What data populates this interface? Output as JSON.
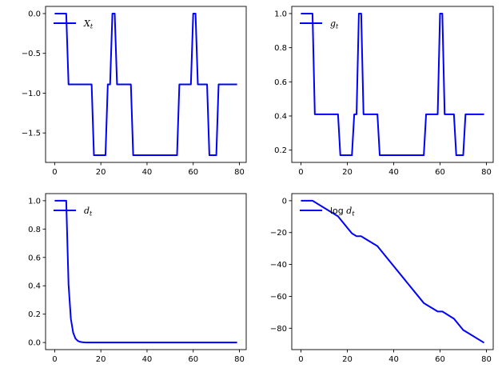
{
  "chart_data": [
    {
      "type": "line",
      "legend": {
        "main": "X",
        "sub": "t",
        "prefix": "",
        "placement": "upper-left"
      },
      "xlim": [
        -3.95,
        82.95
      ],
      "ylim": [
        -1.87,
        0.09
      ],
      "xticks": [
        0,
        20,
        40,
        60,
        80
      ],
      "xtick_labels": [
        "0",
        "20",
        "40",
        "60",
        "80"
      ],
      "yticks": [
        0.0,
        -0.5,
        -1.0,
        -1.5
      ],
      "ytick_labels": [
        "0.0",
        "−0.5",
        "−1.0",
        "−1.5"
      ],
      "color": "#0000ff",
      "x": [
        0,
        1,
        2,
        3,
        4,
        5,
        6,
        7,
        8,
        9,
        10,
        11,
        12,
        13,
        14,
        15,
        16,
        17,
        18,
        19,
        20,
        21,
        22,
        23,
        24,
        25,
        26,
        27,
        28,
        29,
        30,
        31,
        32,
        33,
        34,
        35,
        36,
        37,
        38,
        39,
        40,
        41,
        42,
        43,
        44,
        45,
        46,
        47,
        48,
        49,
        50,
        51,
        52,
        53,
        54,
        55,
        56,
        57,
        58,
        59,
        60,
        61,
        62,
        63,
        64,
        65,
        66,
        67,
        68,
        69,
        70,
        71,
        72,
        73,
        74,
        75,
        76,
        77,
        78,
        79
      ],
      "y": [
        0,
        0,
        0,
        0,
        0,
        0,
        -0.89,
        -0.89,
        -0.89,
        -0.89,
        -0.89,
        -0.89,
        -0.89,
        -0.89,
        -0.89,
        -0.89,
        -0.89,
        -1.78,
        -1.78,
        -1.78,
        -1.78,
        -1.78,
        -1.78,
        -0.89,
        -0.89,
        0,
        0,
        -0.89,
        -0.89,
        -0.89,
        -0.89,
        -0.89,
        -0.89,
        -0.89,
        -1.78,
        -1.78,
        -1.78,
        -1.78,
        -1.78,
        -1.78,
        -1.78,
        -1.78,
        -1.78,
        -1.78,
        -1.78,
        -1.78,
        -1.78,
        -1.78,
        -1.78,
        -1.78,
        -1.78,
        -1.78,
        -1.78,
        -1.78,
        -0.89,
        -0.89,
        -0.89,
        -0.89,
        -0.89,
        -0.89,
        0,
        0,
        -0.89,
        -0.89,
        -0.89,
        -0.89,
        -0.89,
        -1.78,
        -1.78,
        -1.78,
        -1.78,
        -0.89,
        -0.89,
        -0.89,
        -0.89,
        -0.89,
        -0.89,
        -0.89,
        -0.89,
        -0.89
      ]
    },
    {
      "type": "line",
      "legend": {
        "main": "g",
        "sub": "t",
        "prefix": "",
        "placement": "upper-left"
      },
      "xlim": [
        -3.95,
        82.95
      ],
      "ylim": [
        0.128,
        1.042
      ],
      "xticks": [
        0,
        20,
        40,
        60,
        80
      ],
      "xtick_labels": [
        "0",
        "20",
        "40",
        "60",
        "80"
      ],
      "yticks": [
        0.2,
        0.4,
        0.6,
        0.8,
        1.0
      ],
      "ytick_labels": [
        "0.2",
        "0.4",
        "0.6",
        "0.8",
        "1.0"
      ],
      "color": "#0000ff",
      "x": [
        0,
        1,
        2,
        3,
        4,
        5,
        6,
        7,
        8,
        9,
        10,
        11,
        12,
        13,
        14,
        15,
        16,
        17,
        18,
        19,
        20,
        21,
        22,
        23,
        24,
        25,
        26,
        27,
        28,
        29,
        30,
        31,
        32,
        33,
        34,
        35,
        36,
        37,
        38,
        39,
        40,
        41,
        42,
        43,
        44,
        45,
        46,
        47,
        48,
        49,
        50,
        51,
        52,
        53,
        54,
        55,
        56,
        57,
        58,
        59,
        60,
        61,
        62,
        63,
        64,
        65,
        66,
        67,
        68,
        69,
        70,
        71,
        72,
        73,
        74,
        75,
        76,
        77,
        78,
        79
      ],
      "y": [
        1,
        1,
        1,
        1,
        1,
        1,
        0.41,
        0.41,
        0.41,
        0.41,
        0.41,
        0.41,
        0.41,
        0.41,
        0.41,
        0.41,
        0.41,
        0.17,
        0.17,
        0.17,
        0.17,
        0.17,
        0.17,
        0.41,
        0.41,
        1,
        1,
        0.41,
        0.41,
        0.41,
        0.41,
        0.41,
        0.41,
        0.41,
        0.17,
        0.17,
        0.17,
        0.17,
        0.17,
        0.17,
        0.17,
        0.17,
        0.17,
        0.17,
        0.17,
        0.17,
        0.17,
        0.17,
        0.17,
        0.17,
        0.17,
        0.17,
        0.17,
        0.17,
        0.41,
        0.41,
        0.41,
        0.41,
        0.41,
        0.41,
        1,
        1,
        0.41,
        0.41,
        0.41,
        0.41,
        0.41,
        0.17,
        0.17,
        0.17,
        0.17,
        0.41,
        0.41,
        0.41,
        0.41,
        0.41,
        0.41,
        0.41,
        0.41,
        0.41
      ]
    },
    {
      "type": "line",
      "legend": {
        "main": "d",
        "sub": "t",
        "prefix": "",
        "placement": "upper-left"
      },
      "xlim": [
        -3.95,
        82.95
      ],
      "ylim": [
        -0.05,
        1.05
      ],
      "xticks": [
        0,
        20,
        40,
        60,
        80
      ],
      "xtick_labels": [
        "0",
        "20",
        "40",
        "60",
        "80"
      ],
      "yticks": [
        0.0,
        0.2,
        0.4,
        0.6,
        0.8,
        1.0
      ],
      "ytick_labels": [
        "0.0",
        "0.2",
        "0.4",
        "0.6",
        "0.8",
        "1.0"
      ],
      "color": "#0000ff",
      "x": [
        0,
        1,
        2,
        3,
        4,
        5,
        6,
        7,
        8,
        9,
        10,
        11,
        12,
        13,
        14,
        15,
        20,
        30,
        40,
        50,
        60,
        70,
        79
      ],
      "y": [
        1,
        1,
        1,
        1,
        1,
        1,
        0.41,
        0.168,
        0.069,
        0.028,
        0.0117,
        0.0048,
        0.002,
        0.0008,
        0.0003,
        0.0001,
        0,
        0,
        0,
        0,
        0,
        0,
        0
      ]
    },
    {
      "type": "line",
      "legend": {
        "main": "d",
        "sub": "t",
        "prefix": "log ",
        "placement": "upper-left"
      },
      "xlim": [
        -3.95,
        82.95
      ],
      "ylim": [
        -93.4,
        4.45
      ],
      "xticks": [
        0,
        20,
        40,
        60,
        80
      ],
      "xtick_labels": [
        "0",
        "20",
        "40",
        "60",
        "80"
      ],
      "yticks": [
        0,
        -20,
        -40,
        -60,
        -80
      ],
      "ytick_labels": [
        "0",
        "−20",
        "−40",
        "−60",
        "−80"
      ],
      "color": "#0000ff",
      "x": [
        0,
        5,
        6,
        16,
        17,
        22,
        23,
        24,
        25,
        26,
        27,
        33,
        34,
        53,
        54,
        59,
        60,
        61,
        62,
        66,
        67,
        70,
        71,
        79
      ],
      "y": [
        0,
        0,
        -0.9,
        -9.8,
        -11.6,
        -20.5,
        -21.4,
        -22.3,
        -22.3,
        -22.3,
        -23.2,
        -28.5,
        -30.3,
        -64.2,
        -65.1,
        -69.5,
        -69.5,
        -69.5,
        -70.4,
        -74.0,
        -75.8,
        -81.1,
        -82.0,
        -89.1
      ]
    }
  ]
}
